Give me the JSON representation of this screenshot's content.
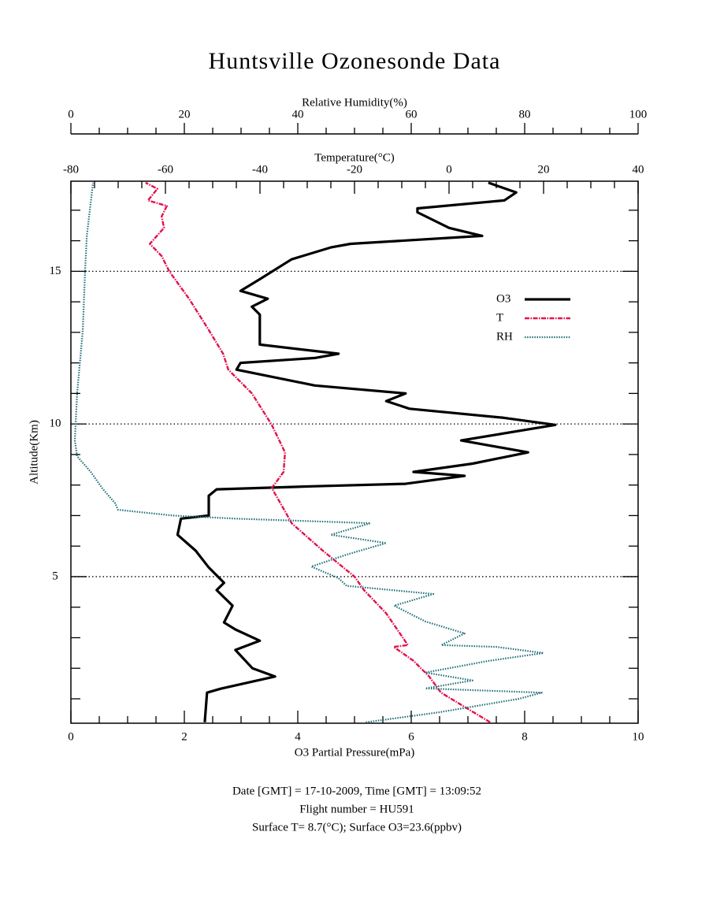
{
  "chart_data": {
    "type": "line",
    "title": "Huntsville Ozonesonde Data",
    "x_label": "O3 Partial Pressure(mPa)",
    "y_label": "Altitude(Km)",
    "xlim": [
      0,
      10
    ],
    "xticks": [
      0,
      2,
      4,
      6,
      8,
      10
    ],
    "x_minor_ticks": [
      0.5,
      1,
      1.5,
      2.5,
      3,
      3.5,
      4.5,
      5,
      5.5,
      6.5,
      7,
      7.5,
      8.5,
      9,
      9.5
    ],
    "ylim": [
      0.2,
      17.95
    ],
    "yticks": [
      5,
      10,
      15
    ],
    "y_minor_ticks": [
      1,
      2,
      3,
      4,
      6,
      7,
      8,
      9,
      11,
      12,
      13,
      14,
      16,
      17
    ],
    "grid": true,
    "t_axis": {
      "label": "Temperature(°C)",
      "lim": [
        -80,
        40
      ],
      "ticks": [
        -80,
        -60,
        -40,
        -20,
        0,
        20,
        40
      ],
      "minor_ticks": [
        -75,
        -70,
        -65,
        -55,
        -50,
        -45,
        -35,
        -30,
        -25,
        -15,
        -10,
        -5,
        5,
        10,
        15,
        25,
        30,
        35
      ]
    },
    "rh_axis": {
      "label": "Relative Humidity(%)",
      "lim": [
        0,
        100
      ],
      "ticks": [
        0,
        20,
        40,
        60,
        80,
        100
      ],
      "minor_ticks": [
        5,
        10,
        15,
        25,
        30,
        35,
        45,
        50,
        55,
        65,
        70,
        75,
        85,
        90,
        95
      ]
    },
    "legend": "upper right",
    "series": [
      {
        "name": "O3",
        "color": "#000000",
        "axis": "x",
        "altitude": [
          0.23,
          1.2,
          1.33,
          1.73,
          2.0,
          2.6,
          2.9,
          3.27,
          3.5,
          4.05,
          4.56,
          4.8,
          5.3,
          5.85,
          6.37,
          6.9,
          7.0,
          7.65,
          7.86,
          7.96,
          8.04,
          8.3,
          8.43,
          8.7,
          9.07,
          9.46,
          9.97,
          10.2,
          10.5,
          10.75,
          11.0,
          11.26,
          11.78,
          12.0,
          12.16,
          12.3,
          12.6,
          13.58,
          13.84,
          14.1,
          14.36,
          14.74,
          15.39,
          15.78,
          15.9,
          16.16,
          16.42,
          16.93,
          17.06,
          17.32,
          17.58,
          17.9
        ],
        "values": [
          2.36,
          2.4,
          2.64,
          3.6,
          3.2,
          2.9,
          3.33,
          2.9,
          2.7,
          2.85,
          2.57,
          2.7,
          2.43,
          2.2,
          1.88,
          1.94,
          2.43,
          2.43,
          2.57,
          4.3,
          5.9,
          6.94,
          6.04,
          7.08,
          8.06,
          6.88,
          8.54,
          7.64,
          5.97,
          5.56,
          5.9,
          4.3,
          2.92,
          2.99,
          4.3,
          4.72,
          3.33,
          3.33,
          3.19,
          3.47,
          2.99,
          3.33,
          3.89,
          4.58,
          4.93,
          7.25,
          6.67,
          6.11,
          6.11,
          7.64,
          7.85,
          7.36
        ]
      },
      {
        "name": "T",
        "color": "#e3124b",
        "axis": "t_axis",
        "altitude": [
          0.23,
          1.2,
          1.73,
          2.24,
          2.7,
          2.76,
          3.8,
          4.56,
          5.0,
          5.85,
          6.75,
          7.14,
          7.9,
          8.43,
          9.07,
          9.97,
          11.0,
          11.78,
          12.3,
          13.07,
          14.1,
          15.0,
          15.5,
          15.9,
          16.42,
          16.8,
          17.14,
          17.32,
          17.7,
          17.9
        ],
        "values": [
          8.7,
          -1.7,
          -4.2,
          -7.5,
          -11.7,
          -8.7,
          -13.3,
          -18,
          -20,
          -26.7,
          -33.3,
          -34.7,
          -37.5,
          -35,
          -34.7,
          -37.5,
          -41.7,
          -46.7,
          -47.8,
          -50.8,
          -55,
          -59.2,
          -60.8,
          -63.3,
          -60.3,
          -60.8,
          -59.7,
          -63.7,
          -61.7,
          -64.2
        ]
      },
      {
        "name": "RH",
        "color": "#1f6f78",
        "axis": "rh_axis",
        "altitude": [
          0.23,
          0.56,
          1.0,
          1.2,
          1.34,
          1.6,
          1.86,
          2.24,
          2.5,
          2.7,
          2.76,
          3.14,
          3.53,
          4.05,
          4.43,
          4.7,
          4.95,
          5.33,
          5.72,
          6.1,
          6.37,
          6.75,
          6.9,
          7.0,
          7.19,
          7.4,
          7.9,
          8.43,
          8.94,
          9.46,
          11.0,
          13.07,
          15.0,
          16.16,
          17.9
        ],
        "values": [
          52,
          65,
          79,
          83,
          62.5,
          70.8,
          62.5,
          73.6,
          83.3,
          75,
          65.3,
          69.4,
          62.5,
          57,
          63.9,
          48.6,
          47.2,
          42.4,
          48.6,
          55.6,
          45.8,
          52.8,
          29,
          18,
          8.3,
          7.8,
          5.5,
          3.5,
          1.1,
          0.7,
          1.1,
          2.1,
          2.5,
          2.8,
          3.9
        ]
      }
    ],
    "notes": [
      "Date [GMT] = 17-10-2009,  Time [GMT] = 13:09:52",
      "Flight number = HU591",
      "Surface T= 8.7(°C); Surface O3=23.6(ppbv)"
    ]
  }
}
